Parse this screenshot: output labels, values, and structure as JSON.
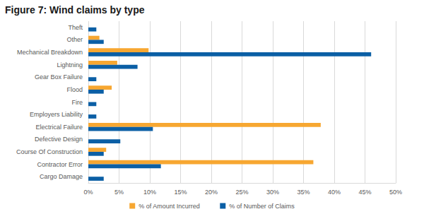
{
  "chart_data": {
    "type": "bar",
    "title": "Figure 7: Wind claims by type",
    "orientation": "horizontal",
    "categories": [
      "Theft",
      "Other",
      "Mechanical Breakdown",
      "Lightning",
      "Gear Box Failure",
      "Flood",
      "Fire",
      "Employers Liability",
      "Electrical Failure",
      "Defective Design",
      "Course Of Construction",
      "Contractor Error",
      "Cargo Damage"
    ],
    "series": [
      {
        "name": "% of Amount Incurred",
        "color": "#f7a731",
        "values": [
          0,
          1.8,
          9.8,
          4.7,
          0,
          3.8,
          0,
          0,
          37.8,
          0,
          2.9,
          36.6,
          0
        ]
      },
      {
        "name": "% of Number of Claims",
        "color": "#0b5fa5",
        "values": [
          1.3,
          2.5,
          46,
          8,
          1.3,
          2.5,
          1.3,
          1.3,
          10.5,
          5.2,
          2.5,
          11.8,
          2.5
        ]
      }
    ],
    "xlim": [
      0,
      50
    ],
    "xticks": [
      {
        "value": 0,
        "label": "0%"
      },
      {
        "value": 5,
        "label": "5%"
      },
      {
        "value": 10,
        "label": "10%"
      },
      {
        "value": 15,
        "label": "15%"
      },
      {
        "value": 20,
        "label": "20%"
      },
      {
        "value": 25,
        "label": "25%"
      },
      {
        "value": 30,
        "label": "30%"
      },
      {
        "value": 35,
        "label": "35%"
      },
      {
        "value": 40,
        "label": "40%"
      },
      {
        "value": 45,
        "label": "45%"
      },
      {
        "value": 50,
        "label": "50%"
      }
    ],
    "grid": true,
    "legend": "bottom"
  }
}
